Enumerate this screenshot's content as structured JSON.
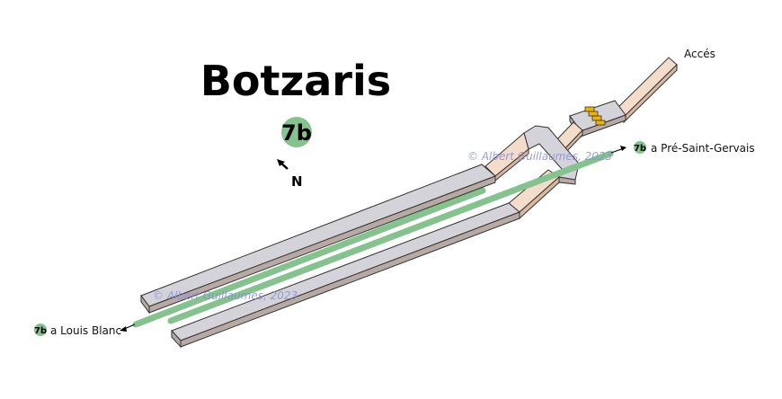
{
  "station": {
    "name": "Botzaris",
    "line": "7b"
  },
  "compass": {
    "label": "N"
  },
  "directions": {
    "to_east": {
      "line": "7b",
      "text": "a Pré-Saint-Gervais"
    },
    "to_west": {
      "line": "7b",
      "text": "a Louis Blanc"
    }
  },
  "exit": {
    "label": "Accés"
  },
  "watermarks": [
    "© Albert Guillaumes, 2023",
    "© Albert Guillaumes, 2023"
  ],
  "colors": {
    "line_7b": "#84c28e",
    "platform_top": "#d4d3da",
    "platform_side": "#b7aaa5",
    "corridor_top": "#f4dcca",
    "corridor_side": "#d9b89f",
    "stairs": "#f0b400",
    "watermark": "#8b8fd8"
  }
}
